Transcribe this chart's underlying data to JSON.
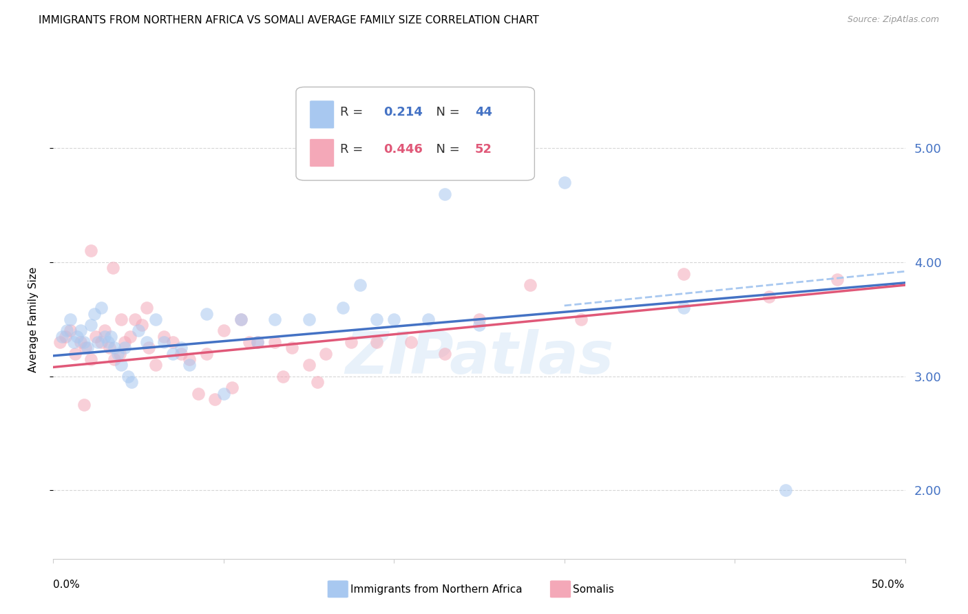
{
  "title": "IMMIGRANTS FROM NORTHERN AFRICA VS SOMALI AVERAGE FAMILY SIZE CORRELATION CHART",
  "source": "Source: ZipAtlas.com",
  "ylabel": "Average Family Size",
  "watermark": "ZIPatlas",
  "legend_blue_r_val": "0.214",
  "legend_blue_n_val": "44",
  "legend_pink_r_val": "0.446",
  "legend_pink_n_val": "52",
  "legend_label_blue": "Immigrants from Northern Africa",
  "legend_label_pink": "Somalis",
  "blue_color": "#a8c8f0",
  "pink_color": "#f4a8b8",
  "blue_line_color": "#4472c4",
  "pink_line_color": "#e05878",
  "dashed_line_color": "#a8c8f0",
  "xlim": [
    0.0,
    0.5
  ],
  "ylim": [
    1.4,
    5.6
  ],
  "yticks": [
    2.0,
    3.0,
    4.0,
    5.0
  ],
  "xtick_positions": [
    0.0,
    0.1,
    0.2,
    0.3,
    0.4,
    0.5
  ],
  "blue_scatter_x": [
    0.005,
    0.008,
    0.01,
    0.012,
    0.014,
    0.016,
    0.018,
    0.02,
    0.022,
    0.024,
    0.026,
    0.028,
    0.03,
    0.032,
    0.034,
    0.036,
    0.038,
    0.04,
    0.042,
    0.044,
    0.046,
    0.05,
    0.055,
    0.06,
    0.065,
    0.07,
    0.075,
    0.08,
    0.09,
    0.1,
    0.11,
    0.12,
    0.13,
    0.15,
    0.17,
    0.19,
    0.22,
    0.25,
    0.18,
    0.2,
    0.23,
    0.3,
    0.37,
    0.43
  ],
  "blue_scatter_y": [
    3.35,
    3.4,
    3.5,
    3.3,
    3.35,
    3.4,
    3.3,
    3.25,
    3.45,
    3.55,
    3.3,
    3.6,
    3.35,
    3.3,
    3.35,
    3.25,
    3.2,
    3.1,
    3.25,
    3.0,
    2.95,
    3.4,
    3.3,
    3.5,
    3.3,
    3.2,
    3.25,
    3.1,
    3.55,
    2.85,
    3.5,
    3.3,
    3.5,
    3.5,
    3.6,
    3.5,
    3.5,
    3.45,
    3.8,
    3.5,
    4.6,
    4.7,
    3.6,
    2.0
  ],
  "pink_scatter_x": [
    0.004,
    0.007,
    0.01,
    0.013,
    0.016,
    0.019,
    0.022,
    0.025,
    0.028,
    0.03,
    0.033,
    0.036,
    0.039,
    0.042,
    0.045,
    0.048,
    0.052,
    0.056,
    0.06,
    0.065,
    0.07,
    0.075,
    0.08,
    0.09,
    0.1,
    0.11,
    0.12,
    0.13,
    0.14,
    0.15,
    0.16,
    0.175,
    0.19,
    0.21,
    0.23,
    0.25,
    0.28,
    0.31,
    0.085,
    0.095,
    0.105,
    0.115,
    0.135,
    0.155,
    0.04,
    0.055,
    0.37,
    0.42,
    0.46,
    0.035,
    0.022,
    0.018
  ],
  "pink_scatter_y": [
    3.3,
    3.35,
    3.4,
    3.2,
    3.3,
    3.25,
    3.15,
    3.35,
    3.3,
    3.4,
    3.25,
    3.15,
    3.2,
    3.3,
    3.35,
    3.5,
    3.45,
    3.25,
    3.1,
    3.35,
    3.3,
    3.2,
    3.15,
    3.2,
    3.4,
    3.5,
    3.3,
    3.3,
    3.25,
    3.1,
    3.2,
    3.3,
    3.3,
    3.3,
    3.2,
    3.5,
    3.8,
    3.5,
    2.85,
    2.8,
    2.9,
    3.3,
    3.0,
    2.95,
    3.5,
    3.6,
    3.9,
    3.7,
    3.85,
    3.95,
    4.1,
    2.75
  ],
  "blue_line_x": [
    0.0,
    0.5
  ],
  "blue_line_y": [
    3.18,
    3.82
  ],
  "pink_line_x": [
    0.0,
    0.5
  ],
  "pink_line_y": [
    3.08,
    3.8
  ],
  "dashed_line_x": [
    0.3,
    0.5
  ],
  "dashed_line_y": [
    3.62,
    3.92
  ],
  "bg_color": "#ffffff",
  "grid_color": "#cccccc",
  "right_axis_color": "#4472c4",
  "title_fontsize": 11,
  "source_fontsize": 9,
  "scatter_size": 180,
  "scatter_alpha": 0.55
}
